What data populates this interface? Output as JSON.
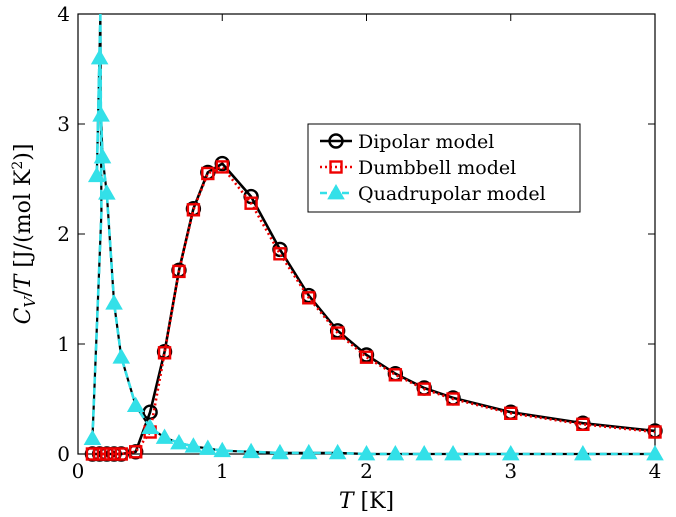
{
  "chart_data": {
    "type": "line",
    "title": "",
    "xlabel": "T [K]",
    "ylabel": "C_V/T [J/(mol K^2)]",
    "xlim": [
      0,
      4
    ],
    "ylim": [
      0,
      4
    ],
    "xticks": [
      "0",
      "1",
      "2",
      "3",
      "4"
    ],
    "yticks": [
      "0",
      "1",
      "2",
      "3",
      "4"
    ],
    "grid": false,
    "legend_position": "right",
    "series": [
      {
        "name": "Dipolar model",
        "color": "#000000",
        "marker": "circle",
        "dash": "solid",
        "x": [
          0.1,
          0.15,
          0.2,
          0.25,
          0.3,
          0.4,
          0.5,
          0.6,
          0.7,
          0.8,
          0.9,
          1.0,
          1.2,
          1.4,
          1.6,
          1.8,
          2.0,
          2.2,
          2.4,
          2.6,
          3.0,
          3.5,
          4.0
        ],
        "y": [
          0.0,
          0.0,
          0.0,
          0.0,
          0.0,
          0.02,
          0.38,
          0.93,
          1.67,
          2.23,
          2.56,
          2.64,
          2.34,
          1.86,
          1.44,
          1.12,
          0.9,
          0.73,
          0.6,
          0.51,
          0.38,
          0.28,
          0.21
        ]
      },
      {
        "name": "Dumbbell model",
        "color": "#ee0000",
        "marker": "square",
        "dash": "dotted",
        "x": [
          0.1,
          0.15,
          0.2,
          0.25,
          0.3,
          0.4,
          0.5,
          0.6,
          0.7,
          0.8,
          0.9,
          1.0,
          1.2,
          1.4,
          1.6,
          1.8,
          2.0,
          2.2,
          2.4,
          2.6,
          3.0,
          3.5,
          4.0
        ],
        "y": [
          0.0,
          0.0,
          0.0,
          0.0,
          0.0,
          0.02,
          0.2,
          0.92,
          1.66,
          2.22,
          2.55,
          2.61,
          2.28,
          1.82,
          1.42,
          1.1,
          0.88,
          0.72,
          0.59,
          0.5,
          0.37,
          0.27,
          0.2
        ]
      },
      {
        "name": "Quadrupolar model",
        "color": "#33e0e8",
        "marker": "triangle",
        "dash": "dashed",
        "x": [
          0.1,
          0.13,
          0.15,
          0.16,
          0.17,
          0.2,
          0.25,
          0.3,
          0.4,
          0.5,
          0.6,
          0.7,
          0.8,
          0.9,
          1.0,
          1.2,
          1.4,
          1.6,
          1.8,
          2.0,
          2.2,
          2.4,
          2.6,
          3.0,
          3.5,
          4.0
        ],
        "y": [
          0.14,
          2.53,
          3.6,
          3.08,
          2.7,
          2.37,
          1.37,
          0.88,
          0.44,
          0.24,
          0.15,
          0.1,
          0.07,
          0.05,
          0.03,
          0.02,
          0.01,
          0.01,
          0.01,
          0.0,
          0.0,
          0.0,
          0.0,
          0.0,
          0.0,
          0.0
        ]
      }
    ],
    "quadrupolar_offscale": {
      "x": 0.155,
      "y": 4.0
    }
  }
}
